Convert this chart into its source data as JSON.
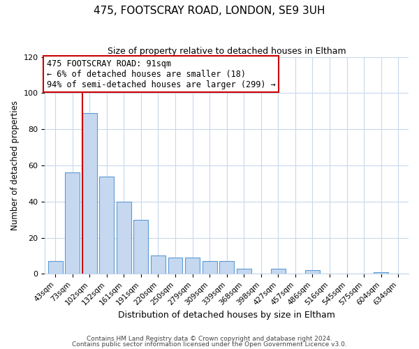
{
  "title": "475, FOOTSCRAY ROAD, LONDON, SE9 3UH",
  "subtitle": "Size of property relative to detached houses in Eltham",
  "xlabel": "Distribution of detached houses by size in Eltham",
  "ylabel": "Number of detached properties",
  "bar_labels": [
    "43sqm",
    "73sqm",
    "102sqm",
    "132sqm",
    "161sqm",
    "191sqm",
    "220sqm",
    "250sqm",
    "279sqm",
    "309sqm",
    "339sqm",
    "368sqm",
    "398sqm",
    "427sqm",
    "457sqm",
    "486sqm",
    "516sqm",
    "545sqm",
    "575sqm",
    "604sqm",
    "634sqm"
  ],
  "bar_values": [
    7,
    56,
    89,
    54,
    40,
    30,
    10,
    9,
    9,
    7,
    7,
    3,
    0,
    3,
    0,
    2,
    0,
    0,
    0,
    1,
    0
  ],
  "bar_color": "#c5d8f0",
  "bar_edge_color": "#5b9bd5",
  "ylim": [
    0,
    120
  ],
  "yticks": [
    0,
    20,
    40,
    60,
    80,
    100,
    120
  ],
  "vline_x_index": 2,
  "vline_color": "#cc0000",
  "annotation_title": "475 FOOTSCRAY ROAD: 91sqm",
  "annotation_line1": "← 6% of detached houses are smaller (18)",
  "annotation_line2": "94% of semi-detached houses are larger (299) →",
  "annotation_box_color": "#ffffff",
  "annotation_box_edge": "#cc0000",
  "footer1": "Contains HM Land Registry data © Crown copyright and database right 2024.",
  "footer2": "Contains public sector information licensed under the Open Government Licence v3.0.",
  "background_color": "#ffffff",
  "grid_color": "#c8d8ec"
}
